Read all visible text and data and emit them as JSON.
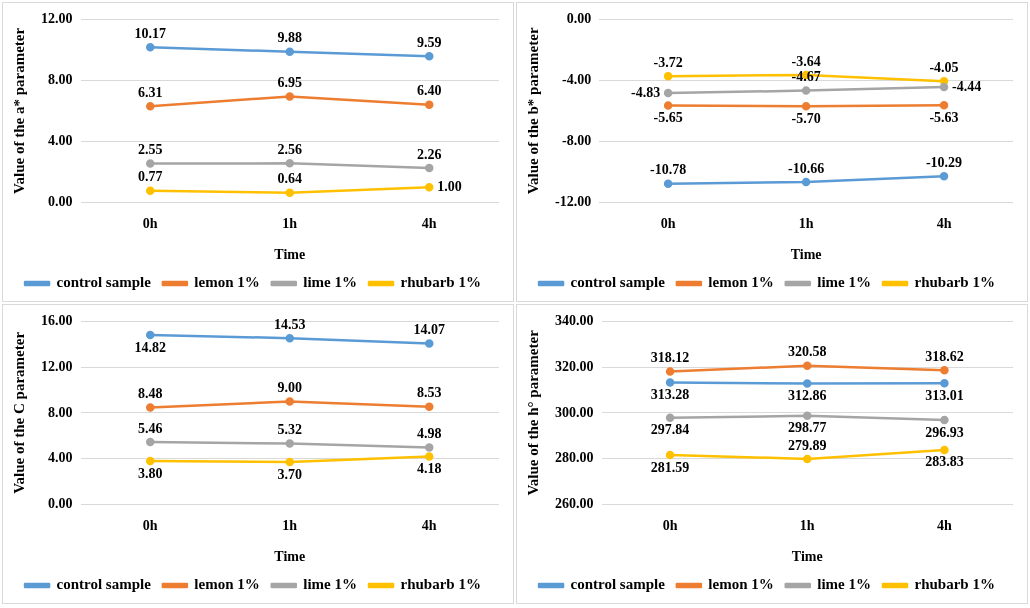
{
  "chart_data": [
    {
      "type": "line",
      "xlabel": "Time",
      "ylabel": "Value of the a* parameter",
      "categories": [
        "0h",
        "1h",
        "4h"
      ],
      "ylim": [
        0,
        12
      ],
      "yticks": [
        {
          "value": 0,
          "label": "0.00"
        },
        {
          "value": 4,
          "label": "4.00"
        },
        {
          "value": 8,
          "label": "8.00"
        },
        {
          "value": 12,
          "label": "12.00"
        }
      ],
      "grid": "y",
      "legend": "bottom",
      "marker": "circle",
      "series": [
        {
          "name": "control sample",
          "color": "#5b9bd5",
          "values": [
            10.17,
            9.88,
            9.59
          ],
          "value_labels": [
            "10.17",
            "9.88",
            "9.59"
          ]
        },
        {
          "name": "lemon 1%",
          "color": "#ed7d31",
          "values": [
            6.31,
            6.95,
            6.4
          ],
          "value_labels": [
            "6.31",
            "6.95",
            "6.40"
          ]
        },
        {
          "name": "lime 1%",
          "color": "#a5a5a5",
          "values": [
            2.55,
            2.56,
            2.26
          ],
          "value_labels": [
            "2.55",
            "2.56",
            "2.26"
          ]
        },
        {
          "name": "rhubarb 1%",
          "color": "#ffc000",
          "values": [
            0.77,
            0.64,
            1.0
          ],
          "value_labels": [
            "0.77",
            "0.64",
            "1.00"
          ]
        }
      ]
    },
    {
      "type": "line",
      "xlabel": "Time",
      "ylabel": "Value of the b* parameter",
      "categories": [
        "0h",
        "1h",
        "4h"
      ],
      "ylim": [
        -12,
        0
      ],
      "yticks": [
        {
          "value": -12,
          "label": "-12.00"
        },
        {
          "value": -8,
          "label": "-8.00"
        },
        {
          "value": -4,
          "label": "-4.00"
        },
        {
          "value": 0,
          "label": "0.00"
        }
      ],
      "grid": "y",
      "legend": "bottom",
      "marker": "circle",
      "series": [
        {
          "name": "control sample",
          "color": "#5b9bd5",
          "values": [
            -10.78,
            -10.66,
            -10.29
          ],
          "value_labels": [
            "-10.78",
            "-10.66",
            "-10.29"
          ]
        },
        {
          "name": "lemon 1%",
          "color": "#ed7d31",
          "values": [
            -5.65,
            -5.7,
            -5.63
          ],
          "value_labels": [
            "-5.65",
            "-5.70",
            "-5.63"
          ]
        },
        {
          "name": "lime 1%",
          "color": "#a5a5a5",
          "values": [
            -4.83,
            -4.67,
            -4.44
          ],
          "value_labels": [
            "-4.83",
            "-4.67",
            "-4.44"
          ]
        },
        {
          "name": "rhubarb 1%",
          "color": "#ffc000",
          "values": [
            -3.72,
            -3.64,
            -4.05
          ],
          "value_labels": [
            "-3.72",
            "-3.64",
            "-4.05"
          ]
        }
      ]
    },
    {
      "type": "line",
      "xlabel": "Time",
      "ylabel": "Value of the C parameter",
      "categories": [
        "0h",
        "1h",
        "4h"
      ],
      "ylim": [
        0,
        16
      ],
      "yticks": [
        {
          "value": 0,
          "label": "0.00"
        },
        {
          "value": 4,
          "label": "4.00"
        },
        {
          "value": 8,
          "label": "8.00"
        },
        {
          "value": 12,
          "label": "12.00"
        },
        {
          "value": 16,
          "label": "16.00"
        }
      ],
      "grid": "y",
      "legend": "bottom",
      "marker": "circle",
      "series": [
        {
          "name": "control sample",
          "color": "#5b9bd5",
          "values": [
            14.82,
            14.53,
            14.07
          ],
          "value_labels": [
            "14.82",
            "14.53",
            "14.07"
          ]
        },
        {
          "name": "lemon 1%",
          "color": "#ed7d31",
          "values": [
            8.48,
            9.0,
            8.53
          ],
          "value_labels": [
            "8.48",
            "9.00",
            "8.53"
          ]
        },
        {
          "name": "lime 1%",
          "color": "#a5a5a5",
          "values": [
            5.46,
            5.32,
            4.98
          ],
          "value_labels": [
            "5.46",
            "5.32",
            "4.98"
          ]
        },
        {
          "name": "rhubarb 1%",
          "color": "#ffc000",
          "values": [
            3.8,
            3.7,
            4.18
          ],
          "value_labels": [
            "3.80",
            "3.70",
            "4.18"
          ]
        }
      ]
    },
    {
      "type": "line",
      "xlabel": "Time",
      "ylabel": "Value of the h° parameter",
      "categories": [
        "0h",
        "1h",
        "4h"
      ],
      "ylim": [
        260,
        340
      ],
      "yticks": [
        {
          "value": 260,
          "label": "260.00"
        },
        {
          "value": 280,
          "label": "280.00"
        },
        {
          "value": 300,
          "label": "300.00"
        },
        {
          "value": 320,
          "label": "320.00"
        },
        {
          "value": 340,
          "label": "340.00"
        }
      ],
      "grid": "y",
      "legend": "bottom",
      "marker": "circle",
      "series": [
        {
          "name": "control sample",
          "color": "#5b9bd5",
          "values": [
            313.28,
            312.86,
            313.01
          ],
          "value_labels": [
            "313.28",
            "312.86",
            "313.01"
          ]
        },
        {
          "name": "lemon 1%",
          "color": "#ed7d31",
          "values": [
            318.12,
            320.58,
            318.62
          ],
          "value_labels": [
            "318.12",
            "320.58",
            "318.62"
          ]
        },
        {
          "name": "lime 1%",
          "color": "#a5a5a5",
          "values": [
            297.84,
            298.77,
            296.93
          ],
          "value_labels": [
            "297.84",
            "298.77",
            "296.93"
          ]
        },
        {
          "name": "rhubarb 1%",
          "color": "#ffc000",
          "values": [
            281.59,
            279.89,
            283.83
          ],
          "value_labels": [
            "281.59",
            "279.89",
            "283.83"
          ]
        }
      ]
    }
  ]
}
